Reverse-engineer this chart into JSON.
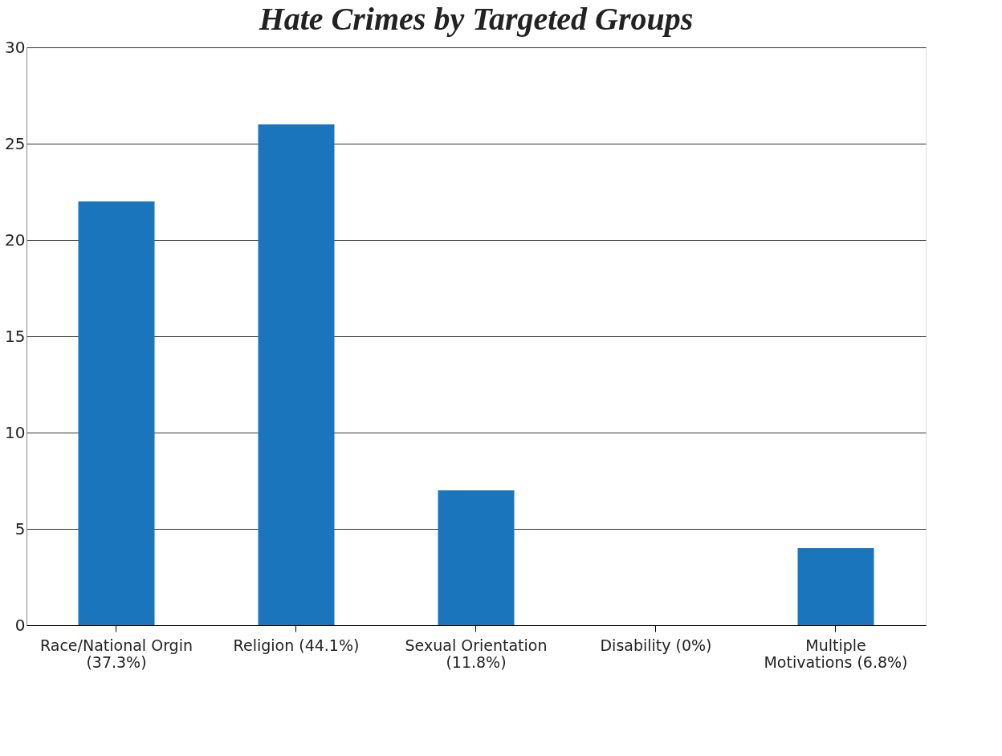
{
  "chart_data": {
    "type": "bar",
    "title": "Hate Crimes by Targeted Groups",
    "categories": [
      "Race/National Orgin\n(37.3%)",
      "Religion (44.1%)",
      "Sexual Orientation\n(11.8%)",
      "Disability (0%)",
      "Multiple\nMotivations (6.8%)"
    ],
    "values": [
      22,
      26,
      7,
      0,
      4
    ],
    "color": "#1b75bc",
    "ylim": [
      0,
      30
    ],
    "yticks": [
      0,
      5,
      10,
      15,
      20,
      25,
      30
    ],
    "grid": "y",
    "legend": false
  }
}
